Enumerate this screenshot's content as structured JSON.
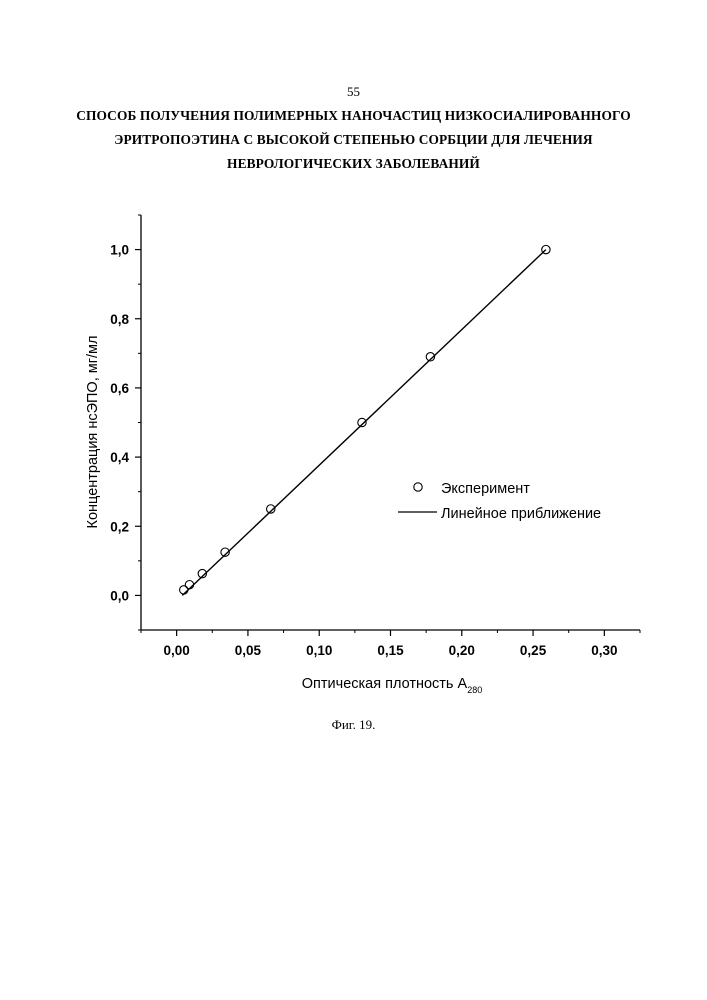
{
  "page": {
    "number": "55",
    "title_lines": [
      "СПОСОБ ПОЛУЧЕНИЯ ПОЛИМЕРНЫХ НАНОЧАСТИЦ НИЗКОСИАЛИРОВАННОГО",
      "ЭРИТРОПОЭТИНА С ВЫСОКОЙ СТЕПЕНЬЮ СОРБЦИИ ДЛЯ ЛЕЧЕНИЯ",
      "НЕВРОЛОГИЧЕСКИХ ЗАБОЛЕВАНИЙ"
    ],
    "caption": "Фиг. 19."
  },
  "chart_data": {
    "type": "scatter",
    "xlabel": "Оптическая плотность A",
    "xlabel_subscript": "280",
    "ylabel": "Концентрация нсЭПО, мг/мл",
    "xlim": [
      -0.025,
      0.325
    ],
    "ylim": [
      -0.1,
      1.1
    ],
    "x_ticks": [
      0.0,
      0.05,
      0.1,
      0.15,
      0.2,
      0.25,
      0.3
    ],
    "x_tick_labels": [
      "0,00",
      "0,05",
      "0,10",
      "0,15",
      "0,20",
      "0,25",
      "0,30"
    ],
    "y_ticks": [
      0.0,
      0.2,
      0.4,
      0.6,
      0.8,
      1.0
    ],
    "y_tick_labels": [
      "0,0",
      "0,2",
      "0,4",
      "0,6",
      "0,8",
      "1,0"
    ],
    "grid": false,
    "legend_position": "center-right",
    "series": [
      {
        "name": "Эксперимент",
        "kind": "markers",
        "marker": "open-circle",
        "x": [
          0.005,
          0.009,
          0.018,
          0.034,
          0.066,
          0.13,
          0.178,
          0.259
        ],
        "y": [
          0.016,
          0.031,
          0.063,
          0.125,
          0.25,
          0.5,
          0.69,
          1.0
        ]
      },
      {
        "name": "Линейное приближение",
        "kind": "line",
        "x": [
          0.004,
          0.259
        ],
        "y": [
          0.0,
          1.0
        ]
      }
    ]
  }
}
